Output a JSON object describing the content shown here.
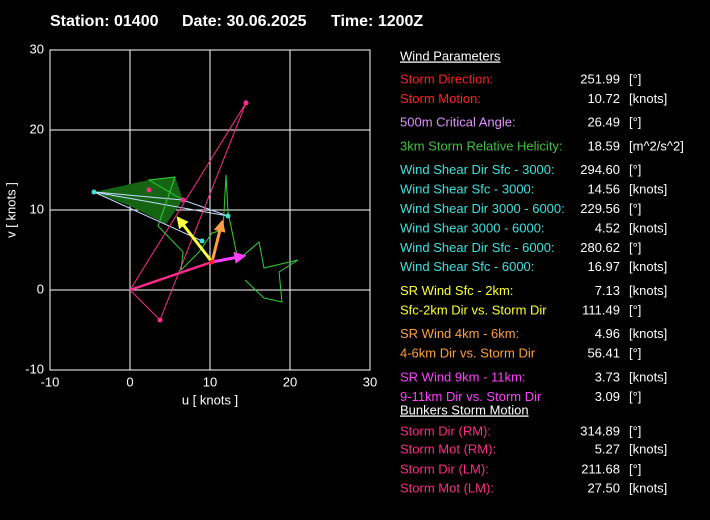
{
  "header": {
    "station": "Station: 01400",
    "date": "Date: 30.06.2025",
    "time": "Time: 1200Z"
  },
  "chart_data": {
    "type": "hodograph",
    "x_label": "u  [ knots ]",
    "y_label": "v  [ knots ]",
    "xlim": [
      -10,
      30
    ],
    "ylim": [
      -10,
      30
    ],
    "xticks": [
      -10,
      0,
      10,
      20,
      30
    ],
    "yticks": [
      -10,
      0,
      10,
      20,
      30
    ],
    "grid": true,
    "series": [
      {
        "style": "area",
        "color": "#146414",
        "x": [
          -4.5,
          2.38,
          5.63,
          6.63,
          4.5,
          0
        ],
        "y": [
          12.25,
          13.75,
          14.13,
          11.25,
          8.25,
          10.5
        ]
      },
      {
        "style": "line",
        "color": "#c8dcff",
        "x": [
          -4.5,
          6.63,
          12.25,
          -4.5,
          9
        ],
        "y": [
          12.25,
          11.25,
          9.25,
          12.25,
          6.13
        ]
      },
      {
        "style": "line",
        "color": "#ff2a8a",
        "x": [
          0,
          14.5,
          3.75,
          0
        ],
        "y": [
          0,
          23.4,
          -3.75,
          0
        ]
      },
      {
        "style": "line",
        "color": "#30d030",
        "x": [
          6.63,
          2.38,
          5.63,
          3.5,
          6.63,
          6.38,
          8.63,
          10.25,
          11.63,
          12,
          12.25,
          13.5,
          16.13,
          16.75,
          21,
          18.63,
          19,
          16.75,
          14.38
        ],
        "y": [
          11.25,
          13.75,
          14.13,
          8,
          4.75,
          2.5,
          4.75,
          7.13,
          7.5,
          14.38,
          9.75,
          3.75,
          6,
          2.75,
          3.75,
          2.25,
          -1.5,
          -1,
          1.25
        ]
      },
      {
        "style": "thick",
        "color": "#ff2a8a",
        "x": [
          0,
          10.25,
          14.25
        ],
        "y": [
          0,
          3.5,
          4.25
        ]
      },
      {
        "style": "arrow",
        "color": "#ffff40",
        "x": [
          10.25,
          6
        ],
        "y": [
          3.5,
          9
        ]
      },
      {
        "style": "arrow",
        "color": "#ffa040",
        "x": [
          10.25,
          11.5
        ],
        "y": [
          3.5,
          8.5
        ]
      },
      {
        "style": "arrow",
        "color": "#ff40ff",
        "x": [
          10.25,
          14.25
        ],
        "y": [
          3.5,
          4.25
        ]
      },
      {
        "style": "points",
        "color": "#40e0e0",
        "x": [
          -4.5,
          12.25,
          9
        ],
        "y": [
          12.25,
          9.25,
          6.13
        ]
      },
      {
        "style": "points",
        "color": "#ff2a8a",
        "x": [
          14.5,
          3.75,
          2.38,
          6.63
        ],
        "y": [
          23.4,
          -3.75,
          12.5,
          11.25
        ]
      },
      {
        "style": "points",
        "color": "#ff2020",
        "x": [
          10.25
        ],
        "y": [
          3.5
        ]
      }
    ]
  },
  "parameters": {
    "title": "Wind Parameters",
    "bunkers_title": "Bunkers Storm Motion",
    "groups": [
      {
        "color": "#ff2020",
        "rows": [
          [
            "Storm Direction:",
            "251.99",
            "[°]"
          ],
          [
            "Storm Motion:",
            "10.72",
            "[knots]"
          ]
        ]
      },
      {
        "color": "#e090ff",
        "rows": [
          [
            "500m Critical Angle:",
            "26.49",
            "[°]"
          ]
        ]
      },
      {
        "color": "#40c040",
        "rows": [
          [
            "3km Storm Relative Helicity:",
            "18.59",
            "[m^2/s^2]"
          ]
        ]
      },
      {
        "color": "#40e0e0",
        "rows": [
          [
            "Wind Shear Dir Sfc - 3000:",
            "294.60",
            "[°]"
          ],
          [
            "Wind Shear Sfc - 3000:",
            "14.56",
            "[knots]"
          ],
          [
            "Wind Shear Dir 3000 - 6000:",
            "229.56",
            "[°]"
          ],
          [
            "Wind Shear 3000 - 6000:",
            "4.52",
            "[knots]"
          ],
          [
            "Wind Shear Dir Sfc - 6000:",
            "280.62",
            "[°]"
          ],
          [
            "Wind Shear Sfc - 6000:",
            "16.97",
            "[knots]"
          ]
        ]
      },
      {
        "color": "#ffff30",
        "rows": [
          [
            "SR Wind Sfc - 2km:",
            "7.13",
            "[knots]"
          ],
          [
            "Sfc-2km Dir vs. Storm Dir",
            "111.49",
            "[°]"
          ]
        ]
      },
      {
        "color": "#ffa040",
        "rows": [
          [
            "SR Wind 4km - 6km:",
            "4.96",
            "[knots]"
          ],
          [
            "4-6km Dir vs. Storm Dir",
            "56.41",
            "[°]"
          ]
        ]
      },
      {
        "color": "#ff40ff",
        "rows": [
          [
            "SR Wind 9km - 11km:",
            "3.73",
            "[knots]"
          ],
          [
            "9-11km Dir vs. Storm Dir",
            "3.09",
            "[°]"
          ]
        ]
      }
    ],
    "bunkers": {
      "color": "#ff2a8a",
      "rows": [
        [
          "Storm Dir (RM):",
          "314.89",
          "[°]"
        ],
        [
          "Storm Mot (RM):",
          "5.27",
          "[knots]"
        ],
        [
          "Storm Dir (LM):",
          "211.68",
          "[°]"
        ],
        [
          "Storm Mot (LM):",
          "27.50",
          "[knots]"
        ]
      ]
    }
  }
}
